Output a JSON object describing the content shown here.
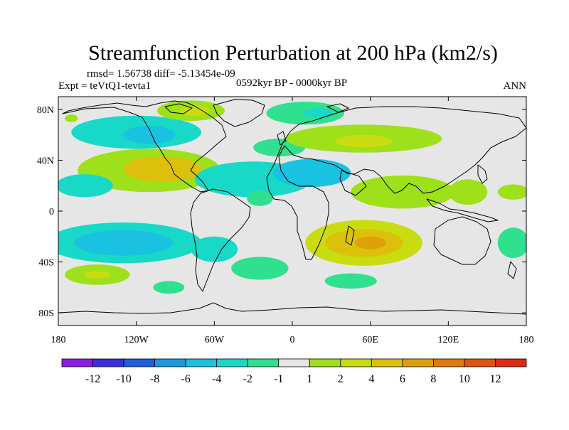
{
  "chart_data": {
    "type": "heatmap",
    "title": "Streamfunction Perturbation at 200 hPa (km2/s)",
    "stats_text": "rmsd= 1.56738 diff= -5.13454e-09",
    "left_label": "Expt = teVtQ1-tevta1",
    "center_label": "0592kyr BP - 0000kyr BP",
    "right_label": "ANN",
    "x_ticks": [
      {
        "value": -180,
        "label": "180"
      },
      {
        "value": -120,
        "label": "120W"
      },
      {
        "value": -60,
        "label": "60W"
      },
      {
        "value": 0,
        "label": "0"
      },
      {
        "value": 60,
        "label": "60E"
      },
      {
        "value": 120,
        "label": "120E"
      },
      {
        "value": 180,
        "label": "180"
      }
    ],
    "y_ticks": [
      {
        "value": 80,
        "label": "80N"
      },
      {
        "value": 40,
        "label": "40N"
      },
      {
        "value": 0,
        "label": "0"
      },
      {
        "value": -40,
        "label": "40S"
      },
      {
        "value": -80,
        "label": "80S"
      }
    ],
    "xlim": [
      -180,
      180
    ],
    "ylim": [
      -90,
      90
    ],
    "colorbar": {
      "colors": [
        "#8a1ee6",
        "#3b2ee0",
        "#1d5fe0",
        "#1a98de",
        "#18c2e0",
        "#18d8c8",
        "#2fe08e",
        "#e6e6e6",
        "#9ee01a",
        "#c8dc10",
        "#dcc00c",
        "#e0a00c",
        "#e07a0c",
        "#e0520f",
        "#e02a12"
      ],
      "labels": [
        "-12",
        "-10",
        "-8",
        "-6",
        "-4",
        "-2",
        "-1",
        "1",
        "2",
        "4",
        "6",
        "8",
        "10",
        "12"
      ]
    },
    "anomalies": [
      {
        "name": "anomaly-north-america-positive",
        "lon": -110,
        "lat": 32,
        "rx": 55,
        "ry": 17,
        "level": 8
      },
      {
        "name": "anomaly-north-america-positive-core",
        "lon": -100,
        "lat": 33,
        "rx": 30,
        "ry": 10,
        "level": 10
      },
      {
        "name": "anomaly-canada-negative",
        "lon": -120,
        "lat": 62,
        "rx": 50,
        "ry": 13,
        "level": 5
      },
      {
        "name": "anomaly-canada-negative-core",
        "lon": -110,
        "lat": 60,
        "rx": 20,
        "ry": 7,
        "level": 4
      },
      {
        "name": "anomaly-arctic-canada-positive",
        "lon": -78,
        "lat": 79,
        "rx": 26,
        "ry": 8,
        "level": 8
      },
      {
        "name": "anomaly-arctic-canada-core",
        "lon": -75,
        "lat": 79,
        "rx": 12,
        "ry": 4,
        "level": 9
      },
      {
        "name": "anomaly-north-pacific-negative",
        "lon": -160,
        "lat": 20,
        "rx": 22,
        "ry": 9,
        "level": 5
      },
      {
        "name": "anomaly-tropical-atlantic-negative",
        "lon": -30,
        "lat": 25,
        "rx": 45,
        "ry": 14,
        "level": 5
      },
      {
        "name": "anomaly-north-africa-negative",
        "lon": 15,
        "lat": 30,
        "rx": 30,
        "ry": 11,
        "level": 4
      },
      {
        "name": "anomaly-north-atlantic-green",
        "lon": -10,
        "lat": 50,
        "rx": 20,
        "ry": 7,
        "level": 6
      },
      {
        "name": "anomaly-equator-atlantic-negative",
        "lon": -25,
        "lat": 10,
        "rx": 10,
        "ry": 6,
        "level": 6
      },
      {
        "name": "anomaly-asia-positive",
        "lon": 55,
        "lat": 57,
        "rx": 60,
        "ry": 11,
        "level": 8
      },
      {
        "name": "anomaly-asia-positive-core",
        "lon": 55,
        "lat": 55,
        "rx": 22,
        "ry": 5,
        "level": 9
      },
      {
        "name": "anomaly-arctic-negative",
        "lon": 10,
        "lat": 77,
        "rx": 30,
        "ry": 9,
        "level": 6
      },
      {
        "name": "anomaly-arctic-negative-core",
        "lon": 20,
        "lat": 77,
        "rx": 12,
        "ry": 4,
        "level": 5
      },
      {
        "name": "anomaly-indian-ocean-positive",
        "lon": 85,
        "lat": 15,
        "rx": 40,
        "ry": 13,
        "level": 8
      },
      {
        "name": "anomaly-pacific-positive",
        "lon": 135,
        "lat": 15,
        "rx": 15,
        "ry": 10,
        "level": 8
      },
      {
        "name": "anomaly-south-indian-positive",
        "lon": 55,
        "lat": -25,
        "rx": 45,
        "ry": 18,
        "level": 9
      },
      {
        "name": "anomaly-south-indian-core",
        "lon": 55,
        "lat": -25,
        "rx": 30,
        "ry": 11,
        "level": 10
      },
      {
        "name": "anomaly-south-indian-max",
        "lon": 60,
        "lat": -25,
        "rx": 12,
        "ry": 5,
        "level": 11
      },
      {
        "name": "anomaly-south-atlantic-green",
        "lon": -25,
        "lat": -45,
        "rx": 22,
        "ry": 9,
        "level": 6
      },
      {
        "name": "anomaly-south-ocean-green",
        "lon": 45,
        "lat": -55,
        "rx": 20,
        "ry": 6,
        "level": 6
      },
      {
        "name": "anomaly-south-pacific-negative",
        "lon": -130,
        "lat": -25,
        "rx": 60,
        "ry": 16,
        "level": 5
      },
      {
        "name": "anomaly-south-pacific-core",
        "lon": -130,
        "lat": -25,
        "rx": 38,
        "ry": 10,
        "level": 4
      },
      {
        "name": "anomaly-south-america-negative",
        "lon": -60,
        "lat": -30,
        "rx": 18,
        "ry": 10,
        "level": 5
      },
      {
        "name": "anomaly-southern-ocean-west",
        "lon": -150,
        "lat": -50,
        "rx": 25,
        "ry": 8,
        "level": 8
      },
      {
        "name": "anomaly-southern-ocean-west-core",
        "lon": -150,
        "lat": -50,
        "rx": 10,
        "ry": 3,
        "level": 9
      },
      {
        "name": "anomaly-southern-ocean-central",
        "lon": -95,
        "lat": -60,
        "rx": 12,
        "ry": 5,
        "level": 6
      },
      {
        "name": "anomaly-east-pacific-negative",
        "lon": 170,
        "lat": -25,
        "rx": 12,
        "ry": 12,
        "level": 6
      },
      {
        "name": "anomaly-far-east-green",
        "lon": 170,
        "lat": 15,
        "rx": 12,
        "ry": 6,
        "level": 8
      },
      {
        "name": "anomaly-arctic-pacific-green",
        "lon": -170,
        "lat": 73,
        "rx": 5,
        "ry": 3,
        "level": 8
      }
    ]
  }
}
